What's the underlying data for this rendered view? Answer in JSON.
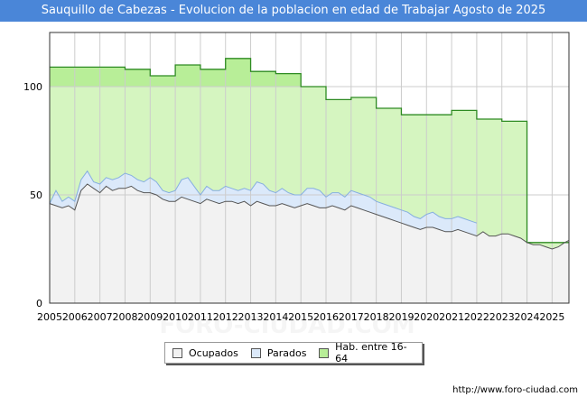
{
  "title": "Sauquillo de Cabezas - Evolucion de la poblacion en edad de Trabajar Agosto de 2025",
  "footer_url": "http://www.foro-ciudad.com",
  "watermark": "FORO-CIUDAD.COM",
  "colors": {
    "header_bg": "#4a86d8",
    "hab_fill": "#d5f5c0",
    "hab_band": "#b8ee98",
    "hab_line": "#2e8b22",
    "parados_fill": "#dbe9fa",
    "parados_line": "#86aee0",
    "ocupados_fill": "#f2f2f2",
    "ocupados_line": "#555555"
  },
  "legend": [
    {
      "label": "Ocupados",
      "color": "#f2f2f2"
    },
    {
      "label": "Parados",
      "color": "#dbe9fa"
    },
    {
      "label": "Hab. entre 16-64",
      "color": "#b8ee98"
    }
  ],
  "chart_data": {
    "type": "area",
    "title": "Sauquillo de Cabezas - Evolucion de la poblacion en edad de Trabajar Agosto de 2025",
    "xlabel": "",
    "ylabel": "",
    "xlim": [
      2005,
      2025.67
    ],
    "ylim": [
      0,
      125
    ],
    "yticks": [
      0,
      50,
      100
    ],
    "xticks": [
      "2005",
      "2006",
      "2007",
      "2008",
      "2009",
      "2010",
      "2011",
      "2012",
      "2013",
      "2014",
      "2015",
      "2016",
      "2017",
      "2018",
      "2019",
      "2020",
      "2021",
      "2022",
      "2023",
      "2024",
      "2025"
    ],
    "grid": true,
    "legend_position": "bottom",
    "series": [
      {
        "name": "Hab. entre 16-64",
        "step": true,
        "x": [
          2005,
          2006,
          2007,
          2008,
          2009,
          2010,
          2011,
          2012,
          2013,
          2014,
          2015,
          2016,
          2017,
          2018,
          2019,
          2020,
          2021,
          2022,
          2023,
          2024
        ],
        "values": [
          109,
          109,
          109,
          108,
          105,
          110,
          108,
          113,
          107,
          106,
          100,
          94,
          95,
          90,
          87,
          87,
          89,
          85,
          84,
          28
        ]
      },
      {
        "name": "Parados",
        "x": [
          2005,
          2005.25,
          2005.5,
          2005.75,
          2006,
          2006.25,
          2006.5,
          2006.75,
          2007,
          2007.25,
          2007.5,
          2007.75,
          2008,
          2008.25,
          2008.5,
          2008.75,
          2009,
          2009.25,
          2009.5,
          2009.75,
          2010,
          2010.25,
          2010.5,
          2010.75,
          2011,
          2011.25,
          2011.5,
          2011.75,
          2012,
          2012.25,
          2012.5,
          2012.75,
          2013,
          2013.25,
          2013.5,
          2013.75,
          2014,
          2014.25,
          2014.5,
          2014.75,
          2015,
          2015.25,
          2015.5,
          2015.75,
          2016,
          2016.25,
          2016.5,
          2016.75,
          2017,
          2017.25,
          2017.5,
          2017.75,
          2018,
          2018.25,
          2018.5,
          2018.75,
          2019,
          2019.25,
          2019.5,
          2019.75,
          2020,
          2020.25,
          2020.5,
          2020.75,
          2021,
          2021.25,
          2021.5,
          2021.75,
          2022
        ],
        "values": [
          46,
          52,
          47,
          49,
          47,
          57,
          61,
          56,
          55,
          58,
          57,
          58,
          60,
          59,
          57,
          56,
          58,
          56,
          52,
          51,
          52,
          57,
          58,
          54,
          50,
          54,
          52,
          52,
          54,
          53,
          52,
          53,
          52,
          56,
          55,
          52,
          51,
          53,
          51,
          50,
          50,
          53,
          53,
          52,
          49,
          51,
          51,
          49,
          52,
          51,
          50,
          49,
          47,
          46,
          45,
          44,
          43,
          42,
          40,
          39,
          41,
          42,
          40,
          39,
          39,
          40,
          39,
          38,
          37
        ]
      },
      {
        "name": "Ocupados",
        "x": [
          2005,
          2005.25,
          2005.5,
          2005.75,
          2006,
          2006.25,
          2006.5,
          2006.75,
          2007,
          2007.25,
          2007.5,
          2007.75,
          2008,
          2008.25,
          2008.5,
          2008.75,
          2009,
          2009.25,
          2009.5,
          2009.75,
          2010,
          2010.25,
          2010.5,
          2010.75,
          2011,
          2011.25,
          2011.5,
          2011.75,
          2012,
          2012.25,
          2012.5,
          2012.75,
          2013,
          2013.25,
          2013.5,
          2013.75,
          2014,
          2014.25,
          2014.5,
          2014.75,
          2015,
          2015.25,
          2015.5,
          2015.75,
          2016,
          2016.25,
          2016.5,
          2016.75,
          2017,
          2017.25,
          2017.5,
          2017.75,
          2018,
          2018.25,
          2018.5,
          2018.75,
          2019,
          2019.25,
          2019.5,
          2019.75,
          2020,
          2020.25,
          2020.5,
          2020.75,
          2021,
          2021.25,
          2021.5,
          2021.75,
          2022,
          2022.25,
          2022.5,
          2022.75,
          2023,
          2023.25,
          2023.5,
          2023.75,
          2024,
          2024.25,
          2024.5,
          2024.75,
          2025,
          2025.25,
          2025.5,
          2025.67
        ],
        "values": [
          46,
          45,
          44,
          45,
          43,
          52,
          55,
          53,
          51,
          54,
          52,
          53,
          53,
          54,
          52,
          51,
          51,
          50,
          48,
          47,
          47,
          49,
          48,
          47,
          46,
          48,
          47,
          46,
          47,
          47,
          46,
          47,
          45,
          47,
          46,
          45,
          45,
          46,
          45,
          44,
          45,
          46,
          45,
          44,
          44,
          45,
          44,
          43,
          45,
          44,
          43,
          42,
          41,
          40,
          39,
          38,
          37,
          36,
          35,
          34,
          35,
          35,
          34,
          33,
          33,
          34,
          33,
          32,
          31,
          33,
          31,
          31,
          32,
          32,
          31,
          30,
          28,
          27,
          27,
          26,
          25,
          26,
          28,
          29
        ]
      }
    ]
  }
}
